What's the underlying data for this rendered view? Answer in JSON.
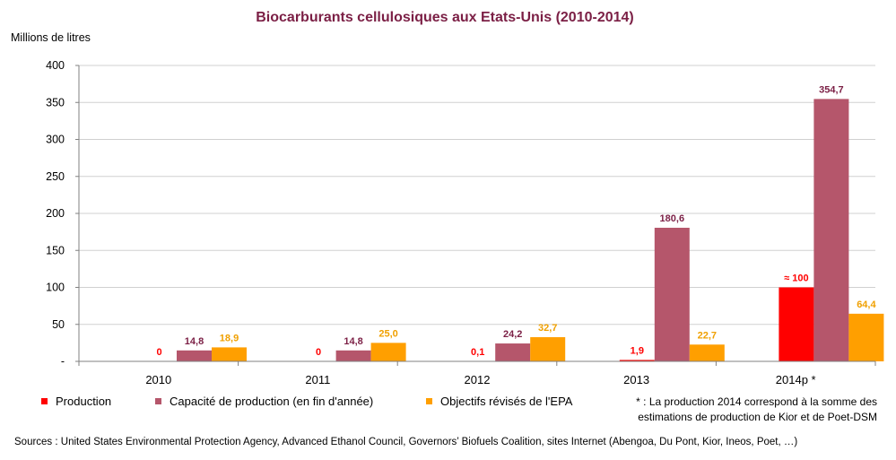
{
  "chart_data": {
    "type": "bar",
    "title": "Biocarburants cellulosiques aux Etats-Unis (2010-2014)",
    "ylabel": "Millions de litres",
    "xlabel": "",
    "ylim": [
      0,
      400
    ],
    "yticks": [
      0,
      50,
      100,
      150,
      200,
      250,
      300,
      350,
      400
    ],
    "ytick_labels": [
      "-",
      "50",
      "100",
      "150",
      "200",
      "250",
      "300",
      "350",
      "400"
    ],
    "grid": true,
    "legend_position": "bottom",
    "categories": [
      "2010",
      "2011",
      "2012",
      "2013",
      "2014p *"
    ],
    "series": [
      {
        "name": "Production",
        "color": "#ff0000",
        "label_color": "#ff0000",
        "values": [
          0,
          0,
          0.1,
          1.9,
          100
        ],
        "labels": [
          "0",
          "0",
          "0,1",
          "1,9",
          "≈ 100"
        ]
      },
      {
        "name": "Capacité de production (en fin d'année)",
        "color": "#b5566b",
        "label_color": "#7b1f45",
        "values": [
          14.8,
          14.8,
          24.2,
          180.6,
          354.7
        ],
        "labels": [
          "14,8",
          "14,8",
          "24,2",
          "180,6",
          "354,7"
        ]
      },
      {
        "name": "Objectifs révisés de l'EPA",
        "color": "#ff9f00",
        "label_color": "#f0a000",
        "values": [
          18.9,
          25.0,
          32.7,
          22.7,
          64.4
        ],
        "labels": [
          "18,9",
          "25,0",
          "32,7",
          "22,7",
          "64,4"
        ]
      }
    ]
  },
  "footnote": {
    "line1": "* : La production 2014 correspond à la somme des",
    "line2": "estimations de production de Kior et de Poet-DSM"
  },
  "source": "Sources : United States Environmental Protection Agency, Advanced Ethanol Council, Governors’ Biofuels Coalition,  sites Internet (Abengoa, Du Pont, Kior, Ineos, Poet,  …)"
}
